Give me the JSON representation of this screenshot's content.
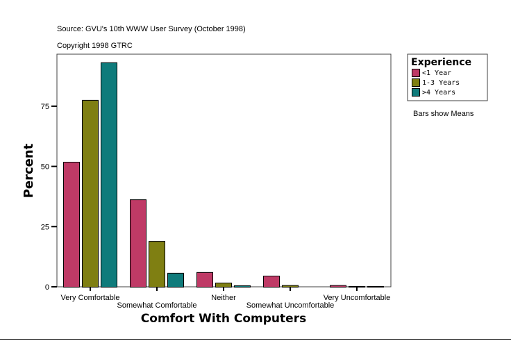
{
  "chart_data": {
    "type": "bar",
    "title": "Source: GVU's 10th WWW User Survey (October 1998)",
    "subtitle": "Copyright 1998 GTRC",
    "xlabel": "Comfort With Computers",
    "ylabel": "Percent",
    "categories": [
      "Very Comfortable",
      "Somewhat Comfortable",
      "Neither",
      "Somewhat Uncomfortable",
      "Very Uncomfortable"
    ],
    "yticks": [
      "0",
      "25",
      "50",
      "75"
    ],
    "ylim": [
      0,
      96.6
    ],
    "grid": false,
    "legend": {
      "title": "Experience",
      "placement": "right"
    },
    "note": "Bars show Means",
    "series": [
      {
        "name": "<1 Year",
        "color": "#bf3a66",
        "values": [
          51.9,
          36.3,
          6.1,
          4.6,
          0.7
        ]
      },
      {
        "name": "1-3 Years",
        "color": "#7f7f12",
        "values": [
          77.6,
          19.0,
          1.7,
          0.7,
          0.3
        ]
      },
      {
        "name": ">4 Years",
        "color": "#0f7b7b",
        "values": [
          93.2,
          5.8,
          0.6,
          0,
          0.3
        ]
      }
    ]
  }
}
